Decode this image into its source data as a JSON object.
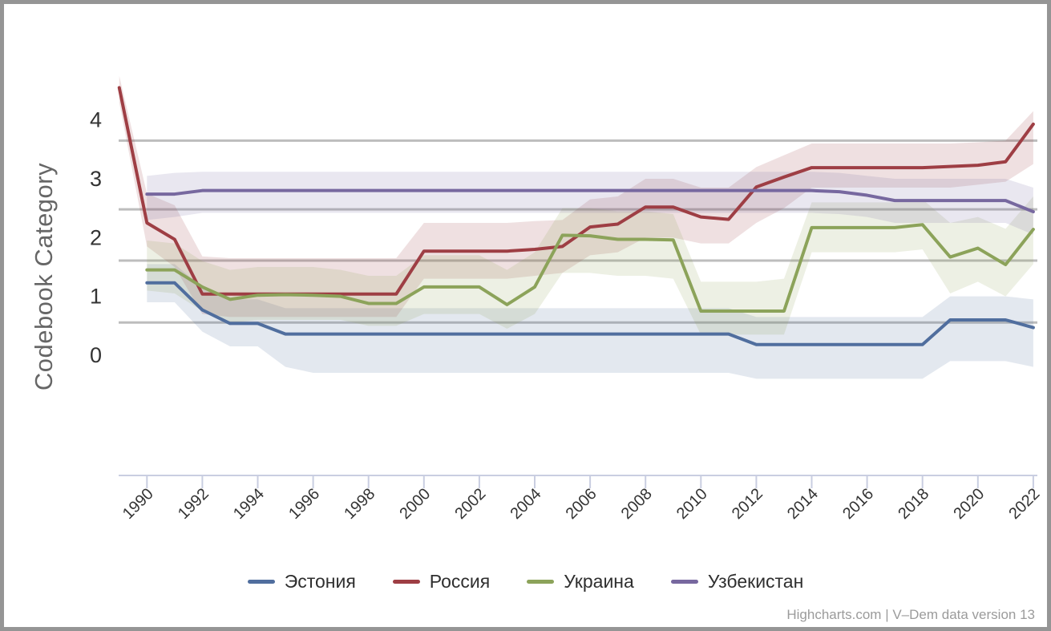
{
  "credits": "Highcharts.com | V–Dem data version 13",
  "y_axis": {
    "title": "Codebook Category",
    "tick_labels": [
      "0",
      "1",
      "2",
      "3",
      "4"
    ],
    "tick_values": [
      0,
      1,
      2,
      3,
      4
    ],
    "threshold_lines": [
      0.555,
      1.61,
      2.48,
      3.65
    ]
  },
  "x_axis": {
    "tick_years": [
      1990,
      1992,
      1994,
      1996,
      1998,
      2000,
      2002,
      2004,
      2006,
      2008,
      2010,
      2012,
      2014,
      2016,
      2018,
      2020,
      2022
    ]
  },
  "chart_data": {
    "type": "line",
    "title": "",
    "xlabel": "",
    "ylabel": "Codebook Category",
    "xlim": [
      1989,
      2022
    ],
    "ylim": [
      -2.05,
      4.9
    ],
    "grid": "horizontal threshold lines only",
    "legend_position": "bottom-center",
    "x": [
      1989,
      1990,
      1991,
      1992,
      1993,
      1994,
      1995,
      1996,
      1997,
      1998,
      1999,
      2000,
      2001,
      2002,
      2003,
      2004,
      2005,
      2006,
      2007,
      2008,
      2009,
      2010,
      2011,
      2012,
      2013,
      2014,
      2015,
      2016,
      2017,
      2018,
      2019,
      2020,
      2021,
      2022
    ],
    "series": [
      {
        "id": "estonia",
        "name": "Эстония",
        "color": "#506e9e",
        "values": [
          null,
          1.23,
          1.23,
          0.77,
          0.54,
          0.54,
          0.36,
          0.36,
          0.36,
          0.36,
          0.36,
          0.36,
          0.36,
          0.36,
          0.36,
          0.36,
          0.36,
          0.36,
          0.36,
          0.36,
          0.36,
          0.36,
          0.36,
          0.18,
          0.18,
          0.18,
          0.18,
          0.18,
          0.18,
          0.18,
          0.6,
          0.6,
          0.6,
          0.47
        ],
        "band_lower": [
          null,
          0.9,
          0.9,
          0.4,
          0.15,
          0.15,
          -0.2,
          -0.3,
          -0.3,
          -0.3,
          -0.3,
          -0.3,
          -0.3,
          -0.3,
          -0.3,
          -0.3,
          -0.3,
          -0.3,
          -0.3,
          -0.3,
          -0.3,
          -0.3,
          -0.3,
          -0.4,
          -0.4,
          -0.4,
          -0.4,
          -0.4,
          -0.4,
          -0.4,
          -0.1,
          -0.1,
          -0.1,
          -0.2
        ],
        "band_upper": [
          null,
          1.55,
          1.55,
          1.15,
          0.95,
          0.95,
          0.8,
          0.8,
          0.8,
          0.8,
          0.8,
          0.8,
          0.8,
          0.8,
          0.8,
          0.8,
          0.8,
          0.8,
          0.8,
          0.8,
          0.8,
          0.8,
          0.8,
          0.65,
          0.65,
          0.65,
          0.65,
          0.65,
          0.65,
          0.65,
          1.0,
          1.0,
          1.0,
          0.95
        ]
      },
      {
        "id": "russia",
        "name": "Россия",
        "color": "#9e3e44",
        "values": [
          4.55,
          2.25,
          1.97,
          1.04,
          1.04,
          1.04,
          1.04,
          1.04,
          1.04,
          1.04,
          1.04,
          1.77,
          1.77,
          1.77,
          1.77,
          1.8,
          1.85,
          2.18,
          2.23,
          2.52,
          2.52,
          2.35,
          2.31,
          2.86,
          3.03,
          3.19,
          3.19,
          3.19,
          3.19,
          3.19,
          3.21,
          3.23,
          3.29,
          3.93
        ],
        "band_lower": [
          4.3,
          1.85,
          1.5,
          0.7,
          0.65,
          0.65,
          0.65,
          0.65,
          0.65,
          0.65,
          0.65,
          1.3,
          1.3,
          1.3,
          1.3,
          1.35,
          1.4,
          1.7,
          1.75,
          2.0,
          2.0,
          1.9,
          1.9,
          2.25,
          2.5,
          2.85,
          2.85,
          2.85,
          2.85,
          2.85,
          2.85,
          2.9,
          2.95,
          3.25
        ],
        "band_upper": [
          4.75,
          2.75,
          2.55,
          1.68,
          1.65,
          1.65,
          1.65,
          1.65,
          1.65,
          1.65,
          1.65,
          2.25,
          2.25,
          2.25,
          2.25,
          2.28,
          2.3,
          2.65,
          2.7,
          3.0,
          3.0,
          2.85,
          2.85,
          3.2,
          3.4,
          3.6,
          3.6,
          3.6,
          3.6,
          3.6,
          3.6,
          3.62,
          3.65,
          4.15
        ]
      },
      {
        "id": "ukraine",
        "name": "Украина",
        "color": "#8ca35a",
        "values": [
          null,
          1.45,
          1.45,
          1.16,
          0.95,
          1.02,
          1.03,
          1.02,
          1.0,
          0.88,
          0.88,
          1.16,
          1.16,
          1.16,
          0.86,
          1.16,
          2.04,
          2.03,
          1.97,
          1.97,
          1.96,
          0.75,
          0.75,
          0.75,
          0.75,
          2.17,
          2.17,
          2.17,
          2.17,
          2.22,
          1.67,
          1.82,
          1.54,
          2.14
        ],
        "band_lower": [
          null,
          1.1,
          1.05,
          0.75,
          0.55,
          0.6,
          0.6,
          0.6,
          0.6,
          0.5,
          0.5,
          0.7,
          0.7,
          0.7,
          0.45,
          0.7,
          1.4,
          1.4,
          1.35,
          1.35,
          1.3,
          0.35,
          0.35,
          0.35,
          0.35,
          1.75,
          1.75,
          1.75,
          1.75,
          1.8,
          1.05,
          1.25,
          1.0,
          1.55
        ],
        "band_upper": [
          null,
          1.95,
          1.9,
          1.6,
          1.45,
          1.5,
          1.5,
          1.5,
          1.45,
          1.35,
          1.35,
          1.7,
          1.7,
          1.7,
          1.45,
          1.75,
          2.5,
          2.5,
          2.45,
          2.45,
          2.4,
          1.25,
          1.25,
          1.25,
          1.3,
          2.6,
          2.6,
          2.6,
          2.6,
          2.65,
          2.25,
          2.35,
          2.15,
          2.7
        ]
      },
      {
        "id": "uzbekistan",
        "name": "Узбекистан",
        "color": "#77689f",
        "values": [
          null,
          2.74,
          2.74,
          2.8,
          2.8,
          2.8,
          2.8,
          2.8,
          2.8,
          2.8,
          2.8,
          2.8,
          2.8,
          2.8,
          2.8,
          2.8,
          2.8,
          2.8,
          2.8,
          2.8,
          2.8,
          2.8,
          2.8,
          2.8,
          2.8,
          2.8,
          2.78,
          2.72,
          2.63,
          2.63,
          2.63,
          2.63,
          2.63,
          2.44
        ],
        "band_lower": [
          null,
          2.3,
          2.35,
          2.42,
          2.42,
          2.42,
          2.42,
          2.42,
          2.42,
          2.42,
          2.42,
          2.42,
          2.42,
          2.42,
          2.42,
          2.42,
          2.42,
          2.42,
          2.42,
          2.42,
          2.42,
          2.42,
          2.42,
          2.42,
          2.42,
          2.42,
          2.4,
          2.35,
          2.25,
          2.25,
          2.25,
          2.25,
          2.25,
          2.05
        ],
        "band_upper": [
          null,
          3.05,
          3.1,
          3.12,
          3.12,
          3.12,
          3.12,
          3.12,
          3.12,
          3.12,
          3.12,
          3.12,
          3.12,
          3.12,
          3.12,
          3.12,
          3.12,
          3.12,
          3.12,
          3.12,
          3.12,
          3.12,
          3.12,
          3.12,
          3.12,
          3.12,
          3.1,
          3.05,
          3.0,
          3.0,
          3.0,
          3.0,
          3.0,
          2.85
        ]
      }
    ]
  },
  "style": {
    "grid_color": "#bdbdbd",
    "axis_color": "#c9cee1",
    "tick_label_color": "#333333",
    "band_opacity": 0.16
  }
}
